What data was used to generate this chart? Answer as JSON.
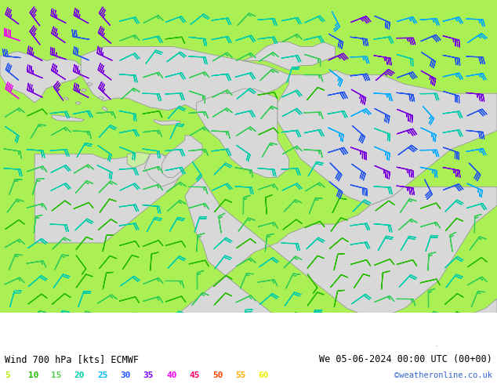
{
  "title_left": "Wind 700 hPa [kts] ECMWF",
  "title_right": "We 05-06-2024 00:00 UTC (00+00)",
  "credit": "©weatheronline.co.uk",
  "bg_color": "#aaf055",
  "land_color": "#d8d8d8",
  "land_edge_color": "#999999",
  "sea_color": "#d8d8d8",
  "figsize": [
    6.34,
    4.9
  ],
  "dpi": 100,
  "legend_values": [
    5,
    10,
    15,
    20,
    25,
    30,
    35,
    40,
    45,
    50,
    55,
    60
  ],
  "legend_colors": [
    "#bbee00",
    "#22bb00",
    "#55cc55",
    "#00ccaa",
    "#00bbff",
    "#2255ff",
    "#7700ff",
    "#ee00ee",
    "#ff0066",
    "#ff4400",
    "#ffaa00",
    "#eeee00"
  ],
  "title_fontsize": 8.5,
  "credit_color": "#3366cc",
  "credit_fontsize": 7.5,
  "legend_fontsize": 8
}
